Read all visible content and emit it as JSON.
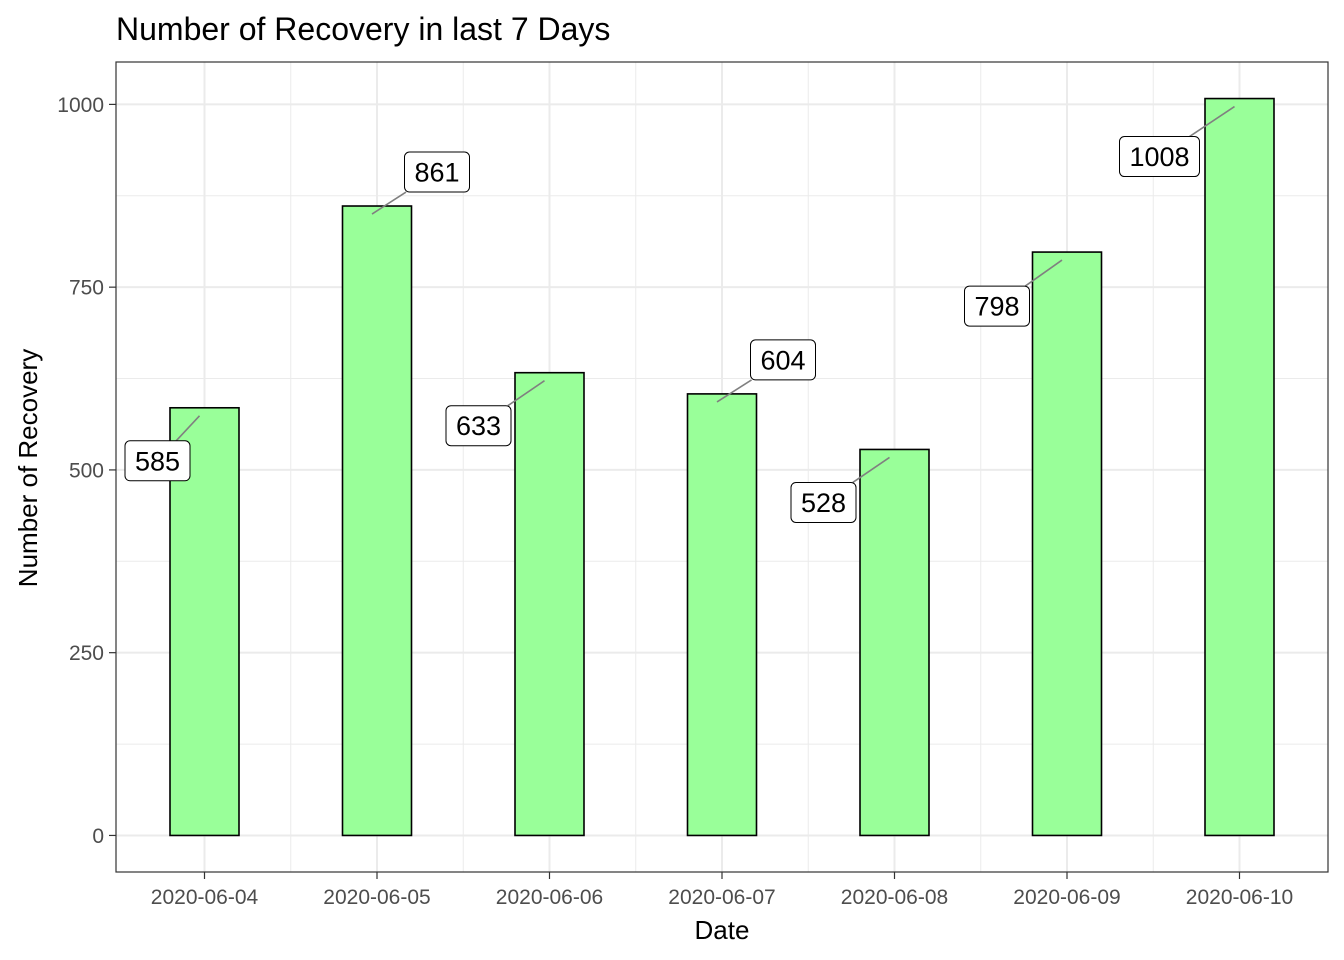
{
  "chart_data": {
    "type": "bar",
    "title": "Number of Recovery in last 7 Days",
    "xlabel": "Date",
    "ylabel": "Number of Recovery",
    "categories": [
      "2020-06-04",
      "2020-06-05",
      "2020-06-06",
      "2020-06-07",
      "2020-06-08",
      "2020-06-09",
      "2020-06-10"
    ],
    "values": [
      585,
      861,
      633,
      604,
      528,
      798,
      1008
    ],
    "labels": [
      "585",
      "861",
      "633",
      "604",
      "528",
      "798",
      "1008"
    ],
    "yticks": [
      0,
      250,
      500,
      750,
      1000
    ],
    "ylim": [
      -50,
      1058
    ],
    "grid": true,
    "legend": "none",
    "colors": {
      "bar_fill": "#99ff99",
      "bar_stroke": "#000000",
      "grid": "#ebebeb",
      "leader_line": "#808080"
    }
  }
}
